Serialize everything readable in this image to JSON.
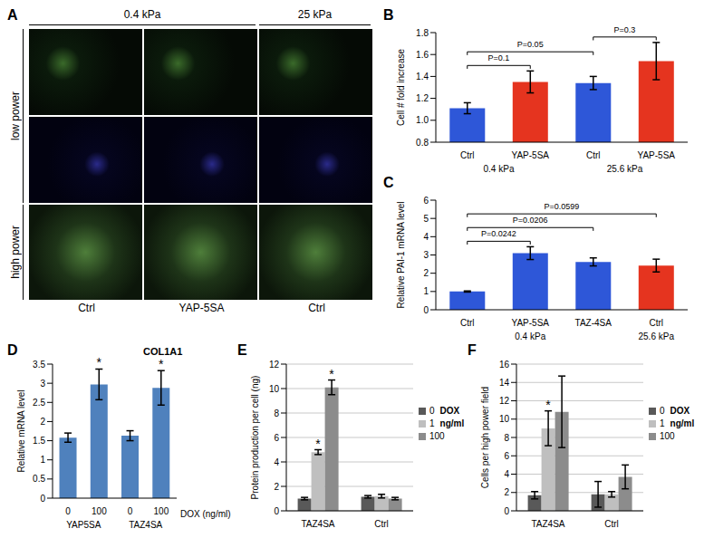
{
  "chart_data": [
    {
      "label": "A",
      "type": "image_grid",
      "column_groups": [
        "0.4 kPa",
        "0.4 kPa",
        "25 kPa"
      ],
      "row_groups": [
        "low power",
        "low power",
        "high power"
      ],
      "columns": [
        "Ctrl",
        "YAP-5SA",
        "Ctrl"
      ]
    },
    {
      "label": "B",
      "type": "bar",
      "categories": [
        "Ctrl",
        "YAP-5SA",
        "Ctrl",
        "YAP-5SA"
      ],
      "groups": [
        "0.4 kPa",
        "0.4 kPa",
        "25.6 kPa",
        "25.6 kPa"
      ],
      "values": [
        1.11,
        1.35,
        1.34,
        1.54
      ],
      "errors": [
        0.05,
        0.1,
        0.06,
        0.17
      ],
      "colors": [
        "#2e57d8",
        "#e5341f",
        "#2e57d8",
        "#e5341f"
      ],
      "ylabel": "Cell # fold increase",
      "ylim": [
        0.8,
        1.8
      ],
      "yticks": [
        0.8,
        {
          "value": 1,
          "label": "1.0"
        },
        1.2,
        1.4,
        1.6,
        1.8
      ],
      "comparisons": [
        {
          "between": [
            0,
            1
          ],
          "text": "P=0.1"
        },
        {
          "between": [
            0,
            2
          ],
          "text": "P=0.05"
        },
        {
          "between": [
            2,
            3
          ],
          "text": "P=0.3"
        }
      ],
      "grid": false
    },
    {
      "label": "C",
      "type": "bar",
      "categories": [
        "Ctrl",
        "YAP-5SA",
        "TAZ-4SA",
        "Ctrl"
      ],
      "groups": [
        "0.4 kPa",
        "0.4 kPa",
        "0.4 kPa",
        "25.6 kPa"
      ],
      "values": [
        1.0,
        3.1,
        2.62,
        2.42
      ],
      "errors": [
        0.03,
        0.35,
        0.22,
        0.35
      ],
      "colors": [
        "#2e57d8",
        "#2e57d8",
        "#2e57d8",
        "#e5341f"
      ],
      "ylabel": "Relative PAI-1 mRNA level",
      "ylim": [
        0,
        6
      ],
      "yticks": [
        0,
        1,
        2,
        3,
        4,
        5,
        6
      ],
      "comparisons": [
        {
          "between": [
            0,
            1
          ],
          "text": "P=0.0242"
        },
        {
          "between": [
            0,
            2
          ],
          "text": "P=0.0206"
        },
        {
          "between": [
            0,
            3
          ],
          "text": "P=0.0599"
        }
      ],
      "grid": false
    },
    {
      "label": "D",
      "type": "bar",
      "title": "COL1A1",
      "categories": [
        "0",
        "100",
        "0",
        "100"
      ],
      "groups": [
        "YAP5SA",
        "YAP5SA",
        "TAZ4SA",
        "TAZ4SA"
      ],
      "xlabel": "DOX (ng/ml)",
      "values": [
        1.58,
        2.97,
        1.63,
        2.88
      ],
      "errors": [
        0.12,
        0.4,
        0.13,
        0.45
      ],
      "significance": [
        null,
        "*",
        null,
        "*"
      ],
      "color": "#4f81bd",
      "ylabel": "Relative mRNA level",
      "ylim": [
        0,
        3.5
      ],
      "yticks": [
        0,
        0.5,
        1,
        1.5,
        2,
        2.5,
        3,
        3.5
      ],
      "grid": false
    },
    {
      "label": "E",
      "type": "bar",
      "categories": [
        "TAZ4SA",
        "Ctrl"
      ],
      "ylabel": "Protein production per cell (ng)",
      "legend": "right",
      "legend_title": "DOX",
      "legend_subtitle": "ng/ml",
      "series": [
        {
          "name": "0",
          "color": "#595959",
          "values": [
            1.0,
            1.15
          ],
          "errors": [
            0.1,
            0.1
          ],
          "significance": [
            null,
            null
          ]
        },
        {
          "name": "1",
          "color": "#bfbfbf",
          "values": [
            4.8,
            1.2
          ],
          "errors": [
            0.2,
            0.15
          ],
          "significance": [
            "*",
            null
          ]
        },
        {
          "name": "100",
          "color": "#8c8c8c",
          "values": [
            10.1,
            1.0
          ],
          "errors": [
            0.6,
            0.1
          ],
          "significance": [
            "*",
            null
          ]
        }
      ],
      "ylim": [
        0,
        12
      ],
      "yticks": [
        0,
        2,
        4,
        6,
        8,
        10,
        12
      ],
      "grid": true
    },
    {
      "label": "F",
      "type": "bar",
      "categories": [
        "TAZ4SA",
        "Ctrl"
      ],
      "ylabel": "Cells per high power field",
      "legend": "right",
      "legend_title": "DOX",
      "legend_subtitle": "ng/ml",
      "series": [
        {
          "name": "0",
          "color": "#595959",
          "values": [
            1.7,
            1.8
          ],
          "errors": [
            0.4,
            1.4
          ],
          "significance": [
            null,
            null
          ]
        },
        {
          "name": "1",
          "color": "#bfbfbf",
          "values": [
            9.0,
            1.8
          ],
          "errors": [
            1.9,
            0.3
          ],
          "significance": [
            "*",
            null
          ]
        },
        {
          "name": "100",
          "color": "#8c8c8c",
          "values": [
            10.8,
            3.7
          ],
          "errors": [
            3.9,
            1.3
          ],
          "significance": [
            null,
            null
          ]
        }
      ],
      "ylim": [
        0,
        16
      ],
      "yticks": [
        0,
        2,
        4,
        6,
        8,
        10,
        12,
        14,
        16
      ],
      "grid": true
    }
  ]
}
